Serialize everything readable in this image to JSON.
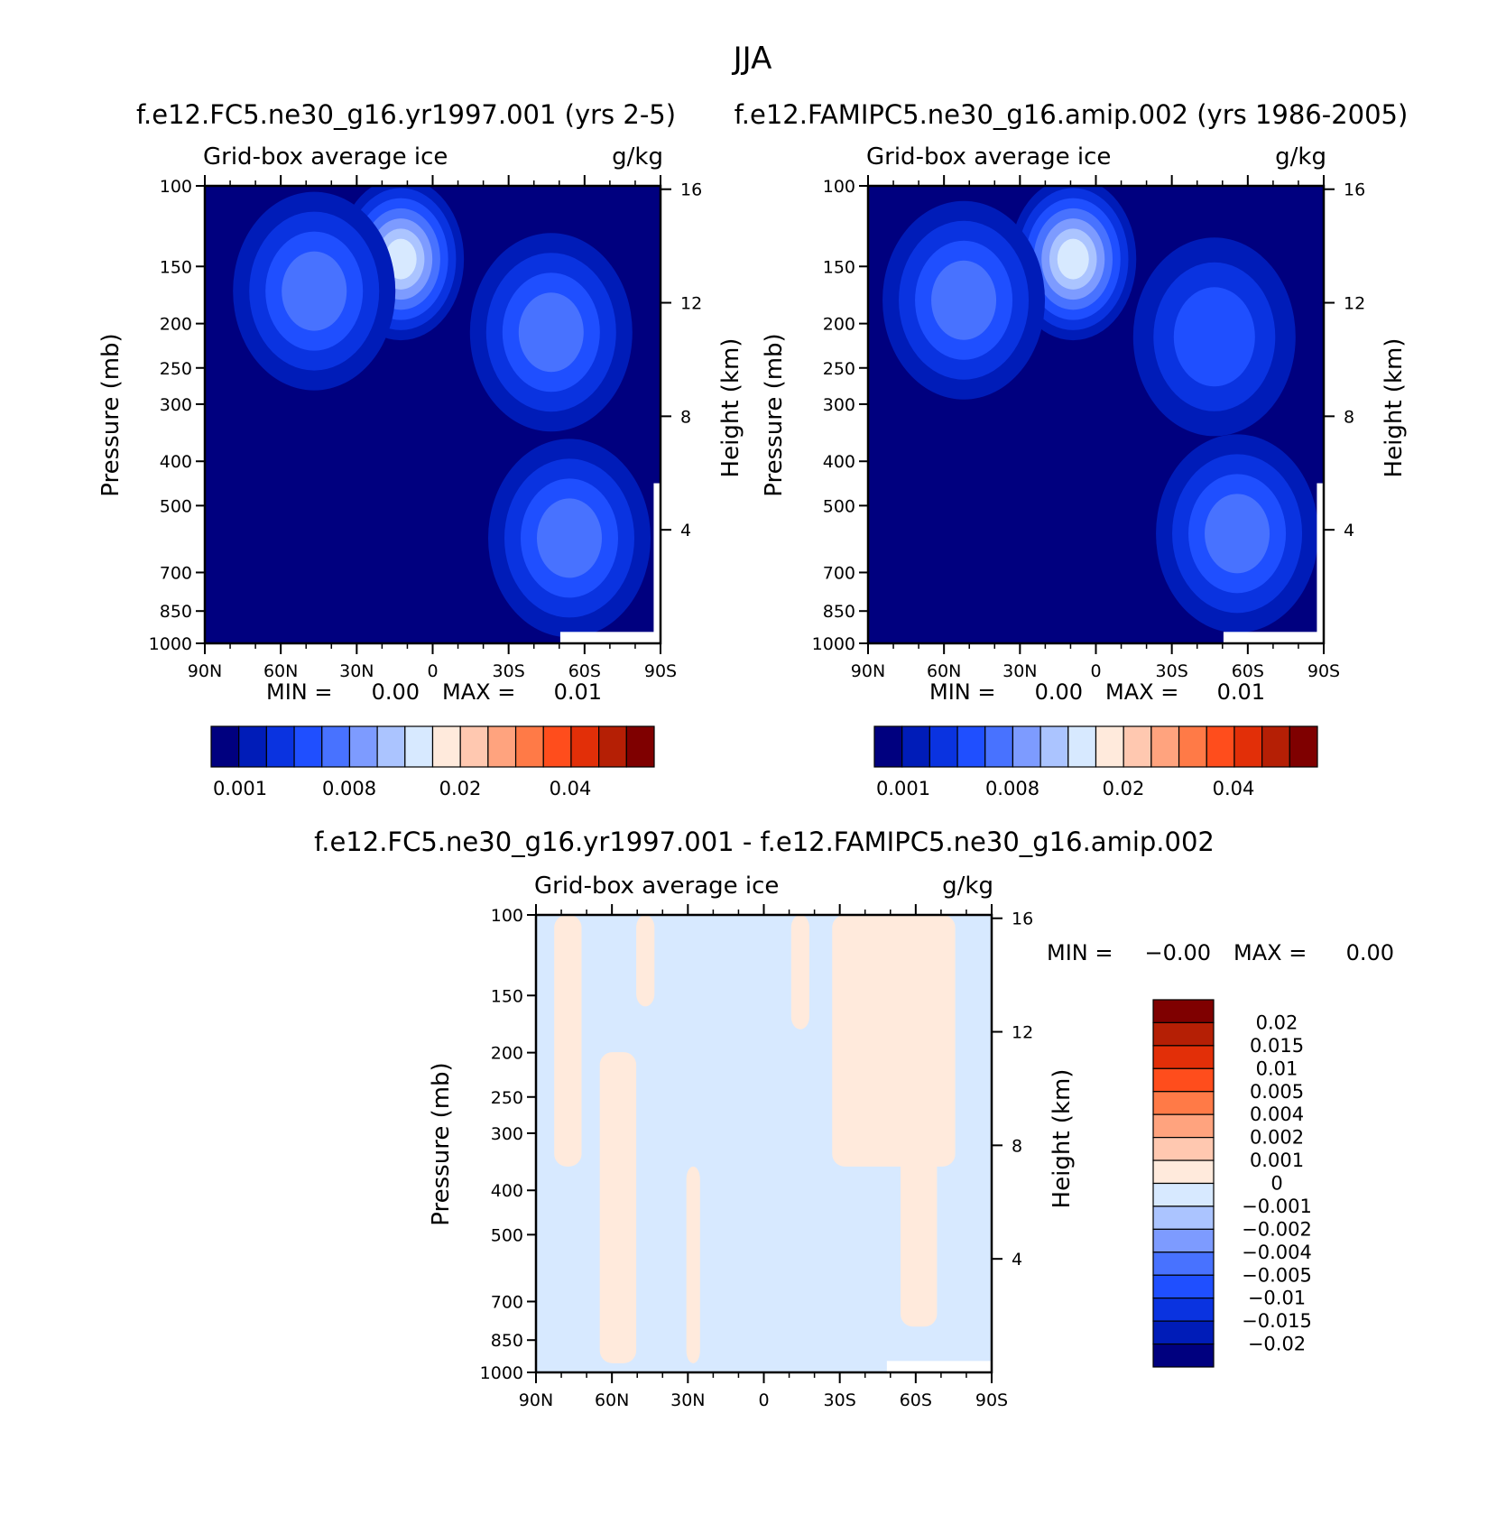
{
  "page_title": "JJA",
  "chart_data": [
    {
      "type": "heatmap",
      "id": "panel1",
      "title": "f.e12.FC5.ne30_g16.yr1997.001 (yrs 2-5)",
      "variable": "Grid-box average ice",
      "units": "g/kg",
      "ylabel": "Pressure (mb)",
      "y2label": "Height (km)",
      "x_ticks": [
        "90N",
        "60N",
        "30N",
        "0",
        "30S",
        "60S",
        "90S"
      ],
      "y_ticks": [
        "100",
        "150",
        "200",
        "250",
        "300",
        "400",
        "500",
        "700",
        "850",
        "1000"
      ],
      "y2_ticks": [
        "16",
        "12",
        "8",
        "4"
      ],
      "background_color": "#00007f",
      "ylim": [
        1000,
        100
      ],
      "min_label": "MIN =",
      "min_value": "0.00",
      "max_label": "MAX =",
      "max_value": "0.01",
      "colorbar": {
        "orientation": "horizontal",
        "labels": [
          "0.001",
          "0.008",
          "0.02",
          "0.04"
        ],
        "colors": [
          "#00007f",
          "#001cb8",
          "#0a33e0",
          "#1f4fff",
          "#4872ff",
          "#7d9bff",
          "#abc4ff",
          "#d7e9ff",
          "#ffeadc",
          "#ffc8b0",
          "#ffa37e",
          "#ff7a47",
          "#ff4d1c",
          "#e22f08",
          "#b51f05",
          "#7f0000"
        ]
      },
      "features": [
        {
          "x": 0.43,
          "y": 0.16,
          "level": 0.85
        },
        {
          "x": 0.24,
          "y": 0.23,
          "level": 0.45
        },
        {
          "x": 0.76,
          "y": 0.32,
          "level": 0.45
        },
        {
          "x": 0.8,
          "y": 0.77,
          "level": 0.55
        }
      ]
    },
    {
      "type": "heatmap",
      "id": "panel2",
      "title": "f.e12.FAMIPC5.ne30_g16.amip.002 (yrs 1986-2005)",
      "variable": "Grid-box average ice",
      "units": "g/kg",
      "ylabel": "Pressure (mb)",
      "y2label": "Height (km)",
      "x_ticks": [
        "90N",
        "60N",
        "30N",
        "0",
        "30S",
        "60S",
        "90S"
      ],
      "y_ticks": [
        "100",
        "150",
        "200",
        "250",
        "300",
        "400",
        "500",
        "700",
        "850",
        "1000"
      ],
      "y2_ticks": [
        "16",
        "12",
        "8",
        "4"
      ],
      "background_color": "#00007f",
      "ylim": [
        1000,
        100
      ],
      "min_label": "MIN =",
      "min_value": "0.00",
      "max_label": "MAX =",
      "max_value": "0.01",
      "colorbar": {
        "orientation": "horizontal",
        "labels": [
          "0.001",
          "0.008",
          "0.02",
          "0.04"
        ],
        "colors": [
          "#00007f",
          "#001cb8",
          "#0a33e0",
          "#1f4fff",
          "#4872ff",
          "#7d9bff",
          "#abc4ff",
          "#d7e9ff",
          "#ffeadc",
          "#ffc8b0",
          "#ffa37e",
          "#ff7a47",
          "#ff4d1c",
          "#e22f08",
          "#b51f05",
          "#7f0000"
        ]
      },
      "features": [
        {
          "x": 0.45,
          "y": 0.16,
          "level": 0.85
        },
        {
          "x": 0.21,
          "y": 0.25,
          "level": 0.45
        },
        {
          "x": 0.76,
          "y": 0.33,
          "level": 0.4
        },
        {
          "x": 0.81,
          "y": 0.76,
          "level": 0.55
        }
      ]
    },
    {
      "type": "heatmap",
      "id": "panel3",
      "title": "f.e12.FC5.ne30_g16.yr1997.001 - f.e12.FAMIPC5.ne30_g16.amip.002",
      "variable": "Grid-box average ice",
      "units": "g/kg",
      "ylabel": "Pressure (mb)",
      "y2label": "Height (km)",
      "x_ticks": [
        "90N",
        "60N",
        "30N",
        "0",
        "30S",
        "60S",
        "90S"
      ],
      "y_ticks": [
        "100",
        "150",
        "200",
        "250",
        "300",
        "400",
        "500",
        "700",
        "850",
        "1000"
      ],
      "y2_ticks": [
        "16",
        "12",
        "8",
        "4"
      ],
      "background_color": "#d7e9ff",
      "ylim": [
        1000,
        100
      ],
      "min_label": "MIN =",
      "min_value": "-0.00",
      "max_label": "MAX =",
      "max_value": "0.00",
      "colorbar": {
        "orientation": "vertical",
        "labels": [
          "0.02",
          "0.015",
          "0.01",
          "0.005",
          "0.004",
          "0.002",
          "0.001",
          "0",
          "-0.001",
          "-0.002",
          "-0.004",
          "-0.005",
          "-0.01",
          "-0.015",
          "-0.02"
        ],
        "colors": [
          "#7f0000",
          "#b51f05",
          "#e22f08",
          "#ff4d1c",
          "#ff7a47",
          "#ffa37e",
          "#ffc8b0",
          "#ffeadc",
          "#d7e9ff",
          "#abc4ff",
          "#7d9bff",
          "#4872ff",
          "#1f4fff",
          "#0a33e0",
          "#001cb8",
          "#00007f"
        ]
      }
    }
  ]
}
